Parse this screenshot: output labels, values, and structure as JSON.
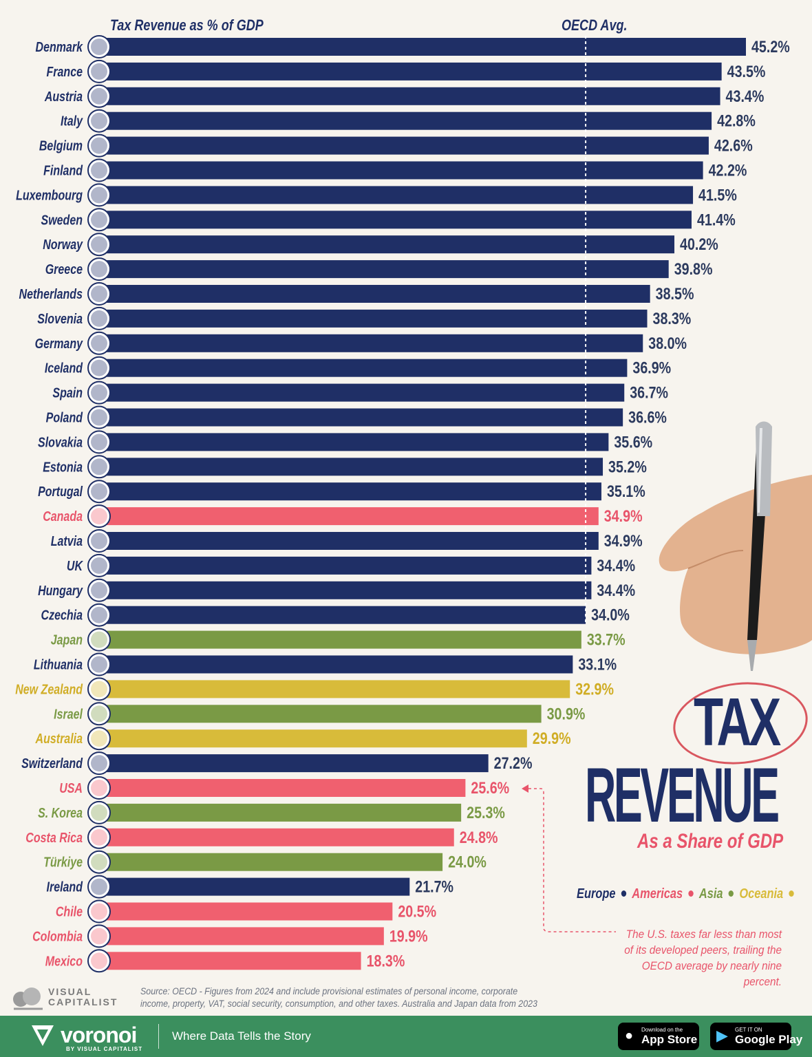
{
  "chart_data": {
    "type": "bar",
    "orientation": "horizontal",
    "title": "Tax Revenue as % of GDP",
    "reference_line": {
      "label": "OECD Avg.",
      "value": 34
    },
    "value_suffix": "%",
    "xlim": [
      0,
      45.2
    ],
    "colors": {
      "Europe": "#1f2f66",
      "Americas": "#f0606f",
      "Asia": "#7a9a45",
      "Oceania": "#d8bb3a"
    },
    "categories": [
      "Denmark",
      "France",
      "Austria",
      "Italy",
      "Belgium",
      "Finland",
      "Luxembourg",
      "Sweden",
      "Norway",
      "Greece",
      "Netherlands",
      "Slovenia",
      "Germany",
      "Iceland",
      "Spain",
      "Poland",
      "Slovakia",
      "Estonia",
      "Portugal",
      "Canada",
      "Latvia",
      "UK",
      "Hungary",
      "Czechia",
      "Japan",
      "Lithuania",
      "New Zealand",
      "Israel",
      "Australia",
      "Switzerland",
      "USA",
      "S. Korea",
      "Costa Rica",
      "Türkiye",
      "Ireland",
      "Chile",
      "Colombia",
      "Mexico"
    ],
    "values": [
      45.2,
      43.5,
      43.4,
      42.8,
      42.6,
      42.2,
      41.5,
      41.4,
      40.2,
      39.8,
      38.5,
      38.3,
      38.0,
      36.9,
      36.7,
      36.6,
      35.6,
      35.2,
      35.1,
      34.9,
      34.9,
      34.4,
      34.4,
      34.0,
      33.7,
      33.1,
      32.9,
      30.9,
      29.9,
      27.2,
      25.6,
      25.3,
      24.8,
      24.0,
      21.7,
      20.5,
      19.9,
      18.3
    ],
    "labels": [
      "45.2%",
      "43.5%",
      "43.4%",
      "42.8%",
      "42.6%",
      "42.2%",
      "41.5%",
      "41.4%",
      "40.2%",
      "39.8%",
      "38.5%",
      "38.3%",
      "38.0%",
      "36.9%",
      "36.7%",
      "36.6%",
      "35.6%",
      "35.2%",
      "35.1%",
      "34.9%",
      "34.9%",
      "34.4%",
      "34.4%",
      "34.0%",
      "33.7%",
      "33.1%",
      "32.9%",
      "30.9%",
      "29.9%",
      "27.2%",
      "25.6%",
      "25.3%",
      "24.8%",
      "24.0%",
      "21.7%",
      "20.5%",
      "19.9%",
      "18.3%"
    ],
    "regions": [
      "Europe",
      "Europe",
      "Europe",
      "Europe",
      "Europe",
      "Europe",
      "Europe",
      "Europe",
      "Europe",
      "Europe",
      "Europe",
      "Europe",
      "Europe",
      "Europe",
      "Europe",
      "Europe",
      "Europe",
      "Europe",
      "Europe",
      "Americas",
      "Europe",
      "Europe",
      "Europe",
      "Europe",
      "Asia",
      "Europe",
      "Oceania",
      "Asia",
      "Oceania",
      "Europe",
      "Americas",
      "Asia",
      "Americas",
      "Asia",
      "Europe",
      "Americas",
      "Americas",
      "Americas"
    ]
  },
  "headline": {
    "word1": "TAX",
    "word2": "REVENUE",
    "subtitle": "As a Share of GDP"
  },
  "legend": [
    {
      "label": "Europe",
      "color": "#1f2f66"
    },
    {
      "label": "Americas",
      "color": "#e8546a"
    },
    {
      "label": "Asia",
      "color": "#7a9a45"
    },
    {
      "label": "Oceania",
      "color": "#d8bb3a"
    }
  ],
  "annotation": "The U.S. taxes far less than most of its developed peers, trailing the OECD average by nearly nine percent.",
  "source": "Source: OECD - Figures from 2024 and include provisional estimates of personal income, corporate income, property, VAT, social security, consumption, and other taxes. Australia and Japan data from 2023",
  "brand": {
    "vc_line1": "VISUAL",
    "vc_line2": "CAPITALIST"
  },
  "footer": {
    "brand": "voronoi",
    "by": "BY VISUAL CAPITALIST",
    "tagline": "Where Data Tells the Story",
    "appstore_small": "Download on the",
    "appstore_big": "App Store",
    "googleplay_small": "GET IT ON",
    "googleplay_big": "Google Play"
  }
}
